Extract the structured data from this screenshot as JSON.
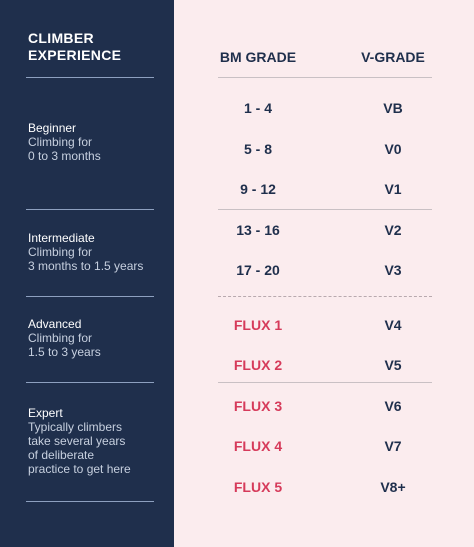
{
  "header": {
    "climber_experience": "CLIMBER\nEXPERIENCE"
  },
  "columns": {
    "bm": "BM GRADE",
    "v": "V-GRADE"
  },
  "tiers": [
    {
      "title": "Beginner",
      "desc": "Climbing for\n0 to 3 months"
    },
    {
      "title": "Intermediate",
      "desc": "Climbing for\n3 months to 1.5 years"
    },
    {
      "title": "Advanced",
      "desc": "Climbing for\n1.5 to 3 years"
    },
    {
      "title": "Expert",
      "desc": "Typically climbers\ntake several years\nof deliberate\npractice to get here"
    }
  ],
  "rows": [
    {
      "bm": "1 - 4",
      "v": "VB"
    },
    {
      "bm": "5 - 8",
      "v": "V0"
    },
    {
      "bm": "9 - 12",
      "v": "V1"
    },
    {
      "bm": "13 - 16",
      "v": "V2"
    },
    {
      "bm": "17 - 20",
      "v": "V3"
    },
    {
      "bm": "FLUX 1",
      "v": "V4"
    },
    {
      "bm": "FLUX 2",
      "v": "V5"
    },
    {
      "bm": "FLUX 3",
      "v": "V6"
    },
    {
      "bm": "FLUX 4",
      "v": "V7"
    },
    {
      "bm": "FLUX 5",
      "v": "V8+"
    }
  ],
  "colors": {
    "navy": "#1f2f4c",
    "pink_bg": "#fbecee",
    "flux_red": "#d63a5a"
  }
}
